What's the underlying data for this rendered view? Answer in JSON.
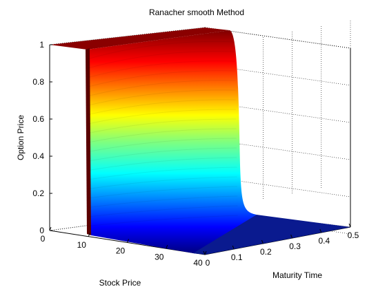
{
  "chart_data": {
    "type": "surface",
    "title": "Ranacher smooth Method",
    "xlabel": "Maturity Time",
    "ylabel": "Stock Price",
    "zlabel": "Option Price",
    "x_ticks": [
      0,
      0.1,
      0.2,
      0.3,
      0.4,
      0.5
    ],
    "y_ticks": [
      0,
      10,
      20,
      30,
      40
    ],
    "z_ticks": [
      0,
      0.2,
      0.4,
      0.6,
      0.8,
      1
    ],
    "xlim": [
      0,
      0.5
    ],
    "ylim": [
      0,
      40
    ],
    "zlim": [
      0,
      1
    ],
    "strike": 10,
    "colormap": "jet",
    "grid": true,
    "description_values": {
      "price_at_low_stock": 1,
      "price_at_high_stock": 0
    }
  }
}
